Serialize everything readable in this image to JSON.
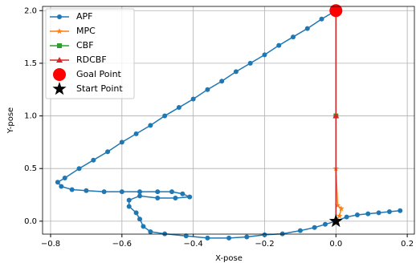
{
  "chart_data": {
    "type": "line",
    "xlabel": "X-pose",
    "ylabel": "Y-pose",
    "xlim": [
      -0.8225,
      0.22
    ],
    "ylim": [
      -0.123,
      2.04
    ],
    "xticks": [
      {
        "value": -0.8,
        "label": "−0.8"
      },
      {
        "value": -0.6,
        "label": "−0.6"
      },
      {
        "value": -0.4,
        "label": "−0.4"
      },
      {
        "value": -0.2,
        "label": "−0.2"
      },
      {
        "value": 0,
        "label": "0.0"
      },
      {
        "value": 0.2,
        "label": "0.2"
      }
    ],
    "yticks": [
      {
        "value": 0,
        "label": "0.0"
      },
      0.5,
      {
        "value": 1,
        "label": "1.0"
      },
      1.5,
      {
        "value": 2,
        "label": "2.0"
      }
    ],
    "grid": true,
    "legend": "upper left",
    "series": [
      {
        "name": "APF",
        "color": "#1f77b4",
        "marker": "circle",
        "line": true,
        "x": [
          0,
          -0.04,
          -0.08,
          -0.12,
          -0.16,
          -0.2,
          -0.24,
          -0.28,
          -0.32,
          -0.36,
          -0.4,
          -0.44,
          -0.48,
          -0.52,
          -0.56,
          -0.6,
          -0.64,
          -0.68,
          -0.72,
          -0.76,
          -0.78,
          -0.77,
          -0.74,
          -0.7,
          -0.65,
          -0.6,
          -0.55,
          -0.5,
          -0.46,
          -0.43,
          -0.41,
          -0.45,
          -0.5,
          -0.55,
          -0.58,
          -0.58,
          -0.56,
          -0.55,
          -0.54,
          -0.52,
          -0.48,
          -0.42,
          -0.36,
          -0.3,
          -0.25,
          -0.2,
          -0.15,
          -0.1,
          -0.06,
          -0.03,
          0,
          0.03,
          0.06,
          0.09,
          0.12,
          0.15,
          0.18
        ],
        "y": [
          2.0,
          1.92,
          1.83,
          1.75,
          1.67,
          1.58,
          1.5,
          1.42,
          1.33,
          1.25,
          1.16,
          1.08,
          1.0,
          0.91,
          0.83,
          0.75,
          0.66,
          0.58,
          0.5,
          0.41,
          0.37,
          0.33,
          0.3,
          0.29,
          0.28,
          0.28,
          0.28,
          0.28,
          0.28,
          0.26,
          0.23,
          0.22,
          0.22,
          0.24,
          0.2,
          0.14,
          0.08,
          0.02,
          -0.05,
          -0.1,
          -0.12,
          -0.14,
          -0.16,
          -0.16,
          -0.15,
          -0.13,
          -0.12,
          -0.09,
          -0.06,
          -0.03,
          0,
          0.04,
          0.06,
          0.07,
          0.08,
          0.09,
          0.1
        ]
      },
      {
        "name": "MPC",
        "color": "#ff7f0e",
        "marker": "star",
        "line": true,
        "x": [
          0,
          0.01,
          0.015,
          0.005,
          0,
          0
        ],
        "y": [
          0,
          0.05,
          0.12,
          0.15,
          0.5,
          2.0
        ]
      },
      {
        "name": "CBF",
        "color": "#2ca02c",
        "marker": "square",
        "line": true,
        "x": [
          0,
          0,
          0
        ],
        "y": [
          0,
          1.0,
          2.0
        ]
      },
      {
        "name": "RDCBF",
        "color": "#d62728",
        "marker": "triangle",
        "line": true,
        "x": [
          0,
          0,
          0
        ],
        "y": [
          0,
          1.0,
          2.0
        ]
      },
      {
        "name": "Goal Point",
        "color": "red",
        "marker": "bigcircle",
        "line": false,
        "x": [
          0
        ],
        "y": [
          2.0
        ]
      },
      {
        "name": "Start Point",
        "color": "black",
        "marker": "bigstar",
        "line": false,
        "x": [
          0
        ],
        "y": [
          0
        ]
      }
    ]
  }
}
